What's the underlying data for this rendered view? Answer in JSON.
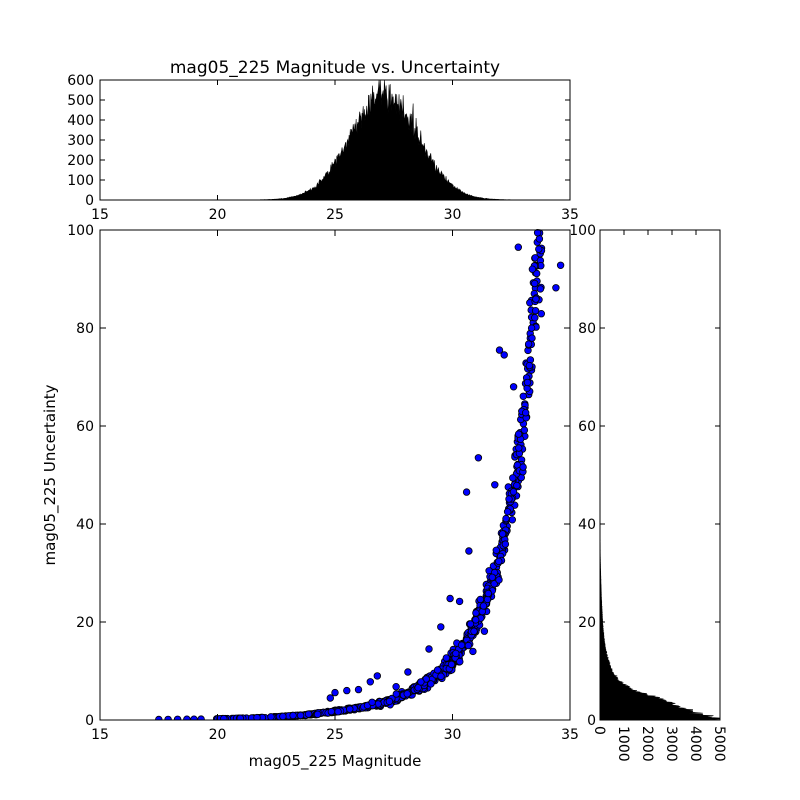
{
  "chart_data": [
    {
      "id": "scatter",
      "type": "scatter",
      "title": "mag05_225 Magnitude vs. Uncertainty",
      "xlabel": "mag05_225 Magnitude",
      "ylabel": "mag05_225 Uncertainty",
      "xlim": [
        15,
        35
      ],
      "ylim": [
        0,
        100
      ],
      "xticks": [
        15,
        20,
        25,
        30,
        35
      ],
      "yticks": [
        0,
        20,
        40,
        60,
        80,
        100
      ],
      "marker_color": "#0000ff",
      "curve_model": {
        "description": "uncertainty rises steeply with magnitude",
        "y_at_x": [
          [
            17.5,
            0.1
          ],
          [
            22,
            0.5
          ],
          [
            25,
            1.8
          ],
          [
            27,
            3.5
          ],
          [
            29,
            8
          ],
          [
            30,
            12
          ],
          [
            31,
            20
          ],
          [
            32,
            33
          ],
          [
            32.5,
            45
          ],
          [
            33,
            60
          ],
          [
            33.3,
            75
          ],
          [
            33.6,
            95
          ]
        ]
      },
      "outliers": [
        {
          "x": 32.0,
          "y": 75.5
        },
        {
          "x": 32.2,
          "y": 74.5
        },
        {
          "x": 32.8,
          "y": 96.5
        },
        {
          "x": 34.4,
          "y": 88.2
        },
        {
          "x": 34.6,
          "y": 92.8
        },
        {
          "x": 30.6,
          "y": 46.5
        },
        {
          "x": 31.1,
          "y": 53.5
        },
        {
          "x": 31.8,
          "y": 48.0
        },
        {
          "x": 30.7,
          "y": 34.5
        },
        {
          "x": 29.9,
          "y": 24.8
        },
        {
          "x": 30.3,
          "y": 24.2
        },
        {
          "x": 29.5,
          "y": 19.0
        },
        {
          "x": 29.0,
          "y": 14.5
        },
        {
          "x": 26.5,
          "y": 7.8
        },
        {
          "x": 26.8,
          "y": 9.0
        },
        {
          "x": 28.1,
          "y": 9.8
        },
        {
          "x": 26.0,
          "y": 6.2
        },
        {
          "x": 25.5,
          "y": 6.0
        },
        {
          "x": 25.0,
          "y": 5.6
        },
        {
          "x": 24.8,
          "y": 4.5
        },
        {
          "x": 27.6,
          "y": 6.8
        },
        {
          "x": 33.4,
          "y": 92.0
        },
        {
          "x": 32.6,
          "y": 68.0
        }
      ]
    },
    {
      "id": "top-hist",
      "type": "bar",
      "xlim": [
        15,
        35
      ],
      "ylim": [
        0,
        600
      ],
      "xticks": [
        15,
        20,
        25,
        30,
        35
      ],
      "yticks": [
        0,
        100,
        200,
        300,
        400,
        500,
        600
      ],
      "peak_x": 27.1,
      "peak_count": 520,
      "distribution": {
        "shape": "roughly gaussian",
        "mean": 27.1,
        "sd": 1.45
      }
    },
    {
      "id": "right-hist",
      "type": "bar",
      "orientation": "horizontal",
      "xlim": [
        0,
        5000
      ],
      "ylim": [
        0,
        100
      ],
      "xticks": [
        0,
        1000,
        2000,
        3000,
        4000,
        5000
      ],
      "yticks": [
        0,
        20,
        40,
        60,
        80,
        100
      ],
      "profile": [
        [
          0.5,
          4800
        ],
        [
          1,
          4300
        ],
        [
          2,
          3700
        ],
        [
          3,
          3100
        ],
        [
          4,
          2700
        ],
        [
          5,
          2100
        ],
        [
          6,
          1400
        ],
        [
          8,
          800
        ],
        [
          10,
          500
        ],
        [
          13,
          300
        ],
        [
          16,
          180
        ],
        [
          20,
          110
        ],
        [
          25,
          60
        ],
        [
          30,
          30
        ],
        [
          34,
          12
        ],
        [
          40,
          5
        ],
        [
          60,
          2
        ]
      ]
    }
  ]
}
